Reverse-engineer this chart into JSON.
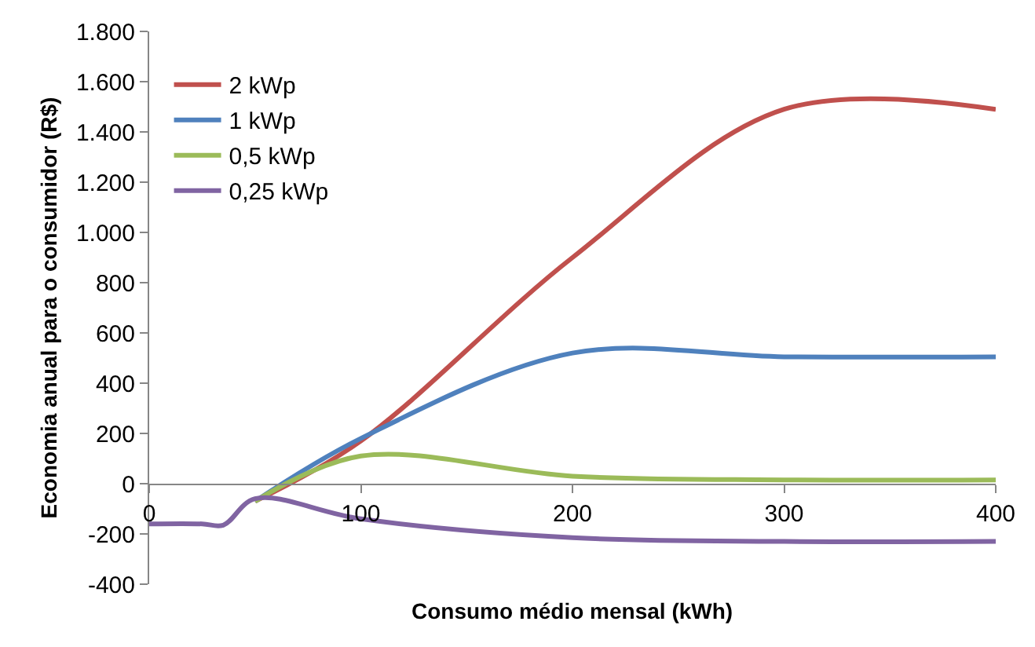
{
  "chart_data": {
    "type": "line",
    "xlabel": "Consumo médio mensal (kWh)",
    "ylabel": "Economia anual para o consumidor (R$)",
    "x": [
      0,
      25,
      35,
      50,
      100,
      200,
      300,
      400
    ],
    "series": [
      {
        "name": "2 kWp",
        "color": "#c0504d",
        "values": [
          null,
          null,
          null,
          -70,
          170,
          900,
          1490,
          1490
        ]
      },
      {
        "name": "1 kWp",
        "color": "#4f81bd",
        "values": [
          null,
          null,
          null,
          -70,
          180,
          520,
          505,
          505
        ]
      },
      {
        "name": "0,5 kWp",
        "color": "#9bbb59",
        "values": [
          null,
          null,
          null,
          -70,
          110,
          30,
          15,
          15
        ]
      },
      {
        "name": "0,25 kWp",
        "color": "#8064a2",
        "values": [
          -160,
          -160,
          -165,
          -60,
          -140,
          -215,
          -230,
          -230
        ]
      }
    ],
    "xlim": [
      0,
      400
    ],
    "xticks": [
      0,
      100,
      200,
      300,
      400
    ],
    "ylim": [
      -400,
      1800
    ],
    "yticks": [
      {
        "value": -400,
        "label": "-400"
      },
      {
        "value": -200,
        "label": "-200"
      },
      0,
      200,
      400,
      600,
      800,
      {
        "value": 1000,
        "label": "1.000"
      },
      {
        "value": 1200,
        "label": "1.200"
      },
      {
        "value": 1400,
        "label": "1.400"
      },
      {
        "value": 1600,
        "label": "1.600"
      },
      {
        "value": 1800,
        "label": "1.800"
      }
    ],
    "legend": "top left",
    "marker": "none",
    "line_style": "solid"
  }
}
